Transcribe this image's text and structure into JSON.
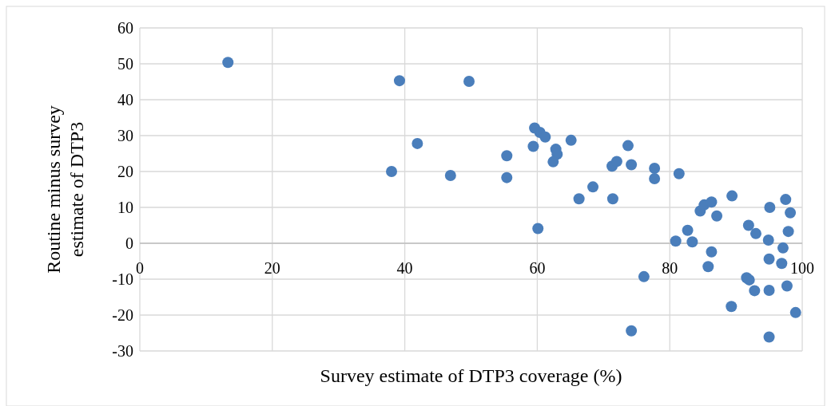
{
  "chart_data": {
    "type": "scatter",
    "xlabel": "Survey estimate of DTP3 coverage (%)",
    "ylabel": "Routine minus survey estimate of DTP3",
    "x": [
      13.3,
      38.0,
      39.2,
      41.9,
      46.9,
      49.7,
      55.4,
      55.4,
      59.6,
      60.4,
      61.2,
      59.4,
      62.8,
      63.0,
      62.4,
      65.1,
      60.1,
      66.3,
      68.4,
      71.4,
      71.3,
      72.0,
      73.7,
      74.2,
      77.7,
      77.7,
      81.4,
      76.1,
      74.2,
      80.9,
      82.7,
      83.4,
      84.6,
      85.2,
      86.3,
      87.1,
      89.4,
      86.3,
      85.8,
      91.9,
      93.0,
      95.1,
      97.5,
      98.2,
      97.9,
      94.9,
      97.1,
      95.0,
      96.9,
      91.6,
      92.0,
      92.8,
      95.0,
      97.7,
      89.3,
      99.0,
      95.0
    ],
    "series": [
      {
        "color": "#4a7ebb",
        "values": [
          50.4,
          20.0,
          45.3,
          27.8,
          18.9,
          45.1,
          24.4,
          18.3,
          32.1,
          30.9,
          29.6,
          27.0,
          26.2,
          24.8,
          22.7,
          28.7,
          4.1,
          12.4,
          15.7,
          12.4,
          21.5,
          22.8,
          27.2,
          21.9,
          20.9,
          18.0,
          19.4,
          -9.3,
          -24.4,
          0.6,
          3.6,
          0.4,
          9.0,
          10.7,
          11.5,
          7.6,
          13.2,
          -2.4,
          -6.5,
          5.0,
          2.7,
          10.0,
          12.2,
          8.5,
          3.3,
          0.9,
          -1.3,
          -4.4,
          -5.6,
          -9.6,
          -10.2,
          -13.2,
          -13.1,
          -11.9,
          -17.6,
          -19.3,
          -26.1
        ]
      }
    ],
    "xlim": [
      0,
      100
    ],
    "xticks": [
      0,
      20,
      40,
      60,
      80,
      100
    ],
    "ylim": [
      -30,
      60
    ],
    "yticks": [
      -30,
      -20,
      -10,
      0,
      10,
      20,
      30,
      40,
      50,
      60
    ],
    "grid": true,
    "marker": "circle"
  }
}
